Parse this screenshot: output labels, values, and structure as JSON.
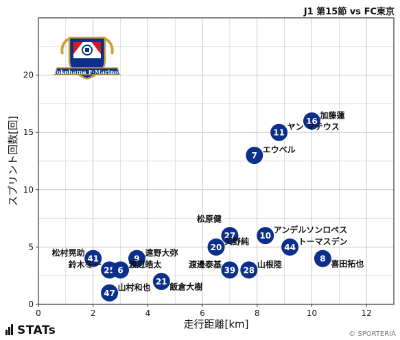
{
  "header": {
    "title": "J1 第15節 vs FC東京"
  },
  "footer": {
    "brand": "STATs",
    "copyright": "© SPORTERIA"
  },
  "team": {
    "logo_text": "Yokohama F·Marinos"
  },
  "colors": {
    "point": "#0b2f8a",
    "grid": "#c8c8c8",
    "frame": "#333333"
  },
  "chart_data": {
    "type": "scatter",
    "xlabel": "走行距離[km]",
    "ylabel": "スプリント回数[回]",
    "xlim": [
      0,
      13
    ],
    "ylim": [
      0,
      25
    ],
    "xticks": [
      0,
      2,
      4,
      6,
      8,
      10,
      12
    ],
    "yticks": [
      0,
      5,
      10,
      15,
      20
    ],
    "grid": true,
    "points": [
      {
        "num": "16",
        "name": "加藤蓮",
        "x": 10.0,
        "y": 16
      },
      {
        "num": "11",
        "name": "ヤン マテウス",
        "x": 8.8,
        "y": 15
      },
      {
        "num": "7",
        "name": "エウベル",
        "x": 7.9,
        "y": 13
      },
      {
        "num": "27",
        "name": "松原健",
        "x": 7.0,
        "y": 6
      },
      {
        "num": "10",
        "name": "アンデルソンロペス",
        "x": 8.3,
        "y": 6
      },
      {
        "num": "20",
        "name": "天野純",
        "x": 6.5,
        "y": 5
      },
      {
        "num": "44",
        "name": "トーマスデン",
        "x": 9.2,
        "y": 5
      },
      {
        "num": "8",
        "name": "喜田拓也",
        "x": 10.4,
        "y": 4
      },
      {
        "num": "41",
        "name": "松村晃助",
        "x": 2.0,
        "y": 4
      },
      {
        "num": "9",
        "name": "遠野大弥",
        "x": 3.6,
        "y": 4
      },
      {
        "num": "25",
        "name": "鈴木冬一",
        "x": 2.6,
        "y": 3
      },
      {
        "num": "6",
        "name": "渡辺皓太",
        "x": 3.0,
        "y": 3
      },
      {
        "num": "39",
        "name": "渡邊泰基",
        "x": 7.0,
        "y": 3
      },
      {
        "num": "28",
        "name": "山根陸",
        "x": 7.7,
        "y": 3
      },
      {
        "num": "21",
        "name": "飯倉大樹",
        "x": 4.5,
        "y": 2
      },
      {
        "num": "47",
        "name": "山村和也",
        "x": 2.6,
        "y": 1
      }
    ]
  }
}
